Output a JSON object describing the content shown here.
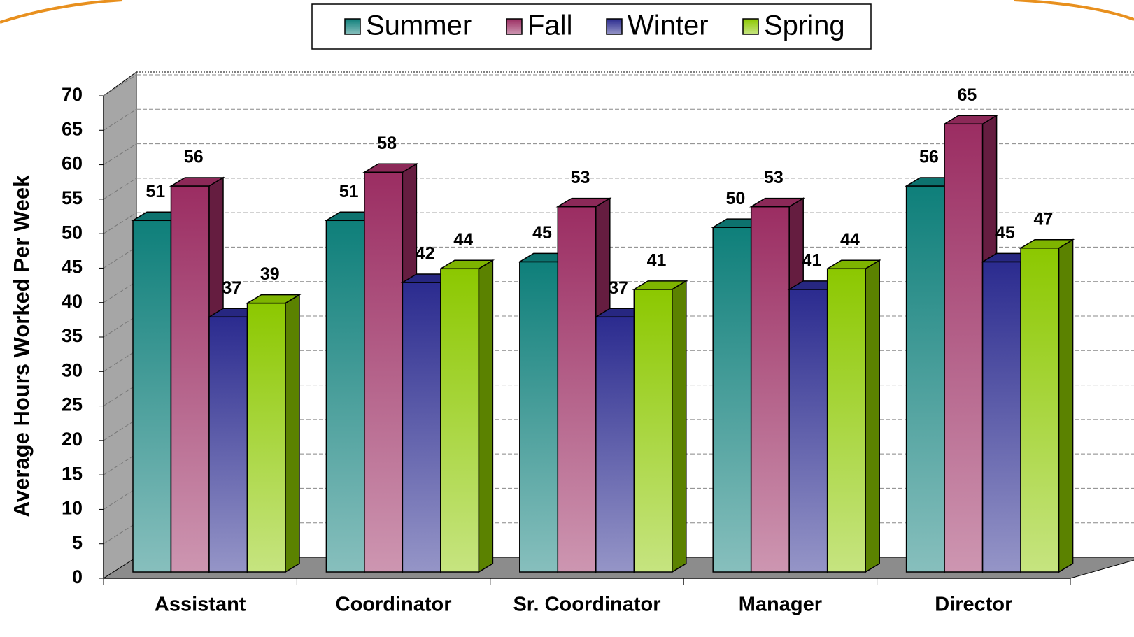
{
  "chart_data": {
    "type": "bar3d",
    "y_label": "Average Hours Worked Per Week",
    "categories": [
      "Assistant",
      "Coordinator",
      "Sr. Coordinator",
      "Manager",
      "Director"
    ],
    "series": [
      {
        "name": "Summer",
        "color": "#0e7f7a",
        "values": [
          51,
          51,
          45,
          50,
          56
        ]
      },
      {
        "name": "Fall",
        "color": "#9b2d62",
        "values": [
          56,
          58,
          53,
          53,
          65
        ]
      },
      {
        "name": "Winter",
        "color": "#2b2b8f",
        "values": [
          37,
          42,
          37,
          41,
          45
        ]
      },
      {
        "name": "Spring",
        "color": "#8cc800",
        "values": [
          39,
          44,
          41,
          44,
          47
        ]
      }
    ],
    "ylim": [
      0,
      70
    ],
    "yticks": [
      0,
      5,
      10,
      15,
      20,
      25,
      30,
      35,
      40,
      45,
      50,
      55,
      60,
      65,
      70
    ],
    "grid": true
  }
}
